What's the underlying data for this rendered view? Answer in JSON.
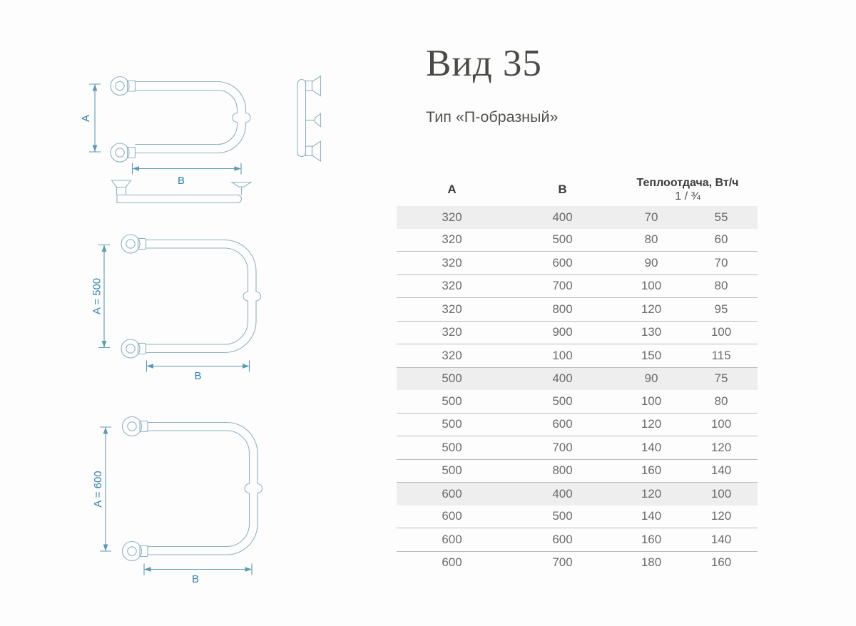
{
  "page": {
    "title": "Вид 35",
    "subtitle": "Тип «П-образный»"
  },
  "table": {
    "col_a": "A",
    "col_b": "B",
    "heat_header": "Теплоотдача, Вт/ч",
    "heat_subheader": "1 / ¾",
    "rows": [
      {
        "a": "320",
        "b": "400",
        "w1": "70",
        "w2": "55",
        "highlight": true
      },
      {
        "a": "320",
        "b": "500",
        "w1": "80",
        "w2": "60",
        "highlight": false
      },
      {
        "a": "320",
        "b": "600",
        "w1": "90",
        "w2": "70",
        "highlight": false
      },
      {
        "a": "320",
        "b": "700",
        "w1": "100",
        "w2": "80",
        "highlight": false
      },
      {
        "a": "320",
        "b": "800",
        "w1": "120",
        "w2": "95",
        "highlight": false
      },
      {
        "a": "320",
        "b": "900",
        "w1": "130",
        "w2": "100",
        "highlight": false
      },
      {
        "a": "320",
        "b": "100",
        "w1": "150",
        "w2": "115",
        "highlight": false
      },
      {
        "a": "500",
        "b": "400",
        "w1": "90",
        "w2": "75",
        "highlight": true
      },
      {
        "a": "500",
        "b": "500",
        "w1": "100",
        "w2": "80",
        "highlight": false
      },
      {
        "a": "500",
        "b": "600",
        "w1": "120",
        "w2": "100",
        "highlight": false
      },
      {
        "a": "500",
        "b": "700",
        "w1": "140",
        "w2": "120",
        "highlight": false
      },
      {
        "a": "500",
        "b": "800",
        "w1": "160",
        "w2": "140",
        "highlight": false
      },
      {
        "a": "600",
        "b": "400",
        "w1": "120",
        "w2": "100",
        "highlight": true
      },
      {
        "a": "600",
        "b": "500",
        "w1": "140",
        "w2": "120",
        "highlight": false
      },
      {
        "a": "600",
        "b": "600",
        "w1": "160",
        "w2": "140",
        "highlight": false
      },
      {
        "a": "600",
        "b": "700",
        "w1": "180",
        "w2": "160",
        "highlight": false
      }
    ]
  },
  "diagrams": {
    "d1": {
      "dim_a": "A",
      "dim_b": "B"
    },
    "d2": {
      "dim_a": "A = 500",
      "dim_b": "B"
    },
    "d3": {
      "dim_a": "A = 600",
      "dim_b": "B"
    }
  },
  "colors": {
    "drawing_line": "#8fb3c2",
    "dimension_line": "#5f9ab5",
    "dimension_text": "#2e82b0",
    "row_highlight": "#eeeeee",
    "row_border": "#bcbcbc",
    "cell_text": "#6b6b6b",
    "header_text": "#3c3c3c",
    "title_text": "#4a4a46"
  }
}
